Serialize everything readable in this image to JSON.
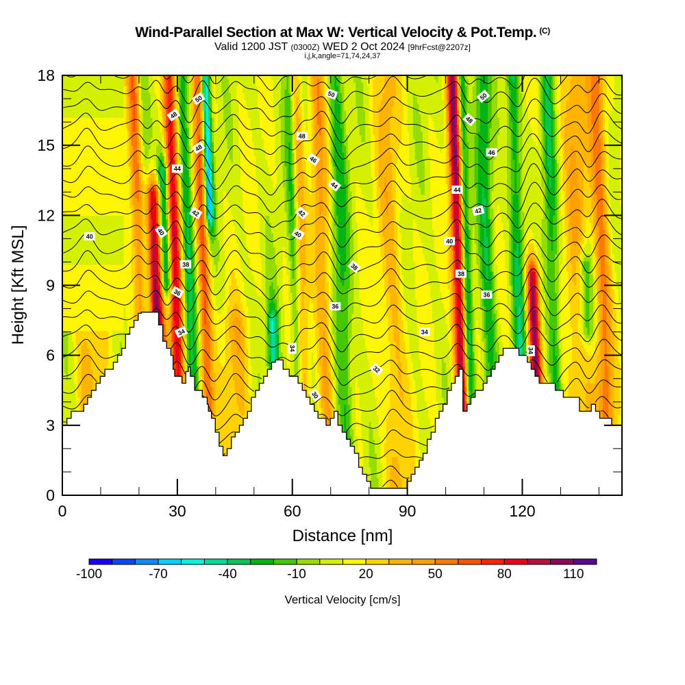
{
  "header": {
    "title": "Wind-Parallel Section at Max W: Vertical Velocity & Pot.Temp.",
    "copyright": "(C)",
    "valid_prefix": "Valid 1200 JST",
    "valid_utc": "(0300Z)",
    "valid_date": "WED 2 Oct 2024",
    "forecast": "[9hrFcst@2207z]",
    "indices": "i,j,k,angle=71,74,24,37"
  },
  "chart_data": {
    "type": "heatmap",
    "title": "Wind-Parallel Section at Max W: Vertical Velocity & Pot.Temp.",
    "xlabel": "Distance [nm]",
    "ylabel": "Height [Kft MSL]",
    "xlim": [
      0,
      146
    ],
    "ylim": [
      0,
      18
    ],
    "xticks": [
      0,
      30,
      60,
      90,
      120
    ],
    "xticks_minor_step": 10,
    "yticks": [
      0,
      3,
      6,
      9,
      12,
      15,
      18
    ],
    "yticks_minor_step": 1,
    "fill_variable": "Vertical Velocity [cm/s]",
    "contour_variable": "Potential Temperature",
    "contour_interval": 1,
    "contour_label_values": [
      30,
      32,
      34,
      36,
      38,
      40,
      42,
      44,
      46,
      48,
      50
    ],
    "colorbar": {
      "label": "Vertical Velocity [cm/s]",
      "boundaries": [
        -100,
        120
      ],
      "step": 10,
      "tick_labels": [
        "-100",
        "-70",
        "-40",
        "-10",
        "20",
        "50",
        "80",
        "110"
      ],
      "colors": [
        "#1400ff",
        "#0a46ff",
        "#0a8cff",
        "#00d2ff",
        "#00f5dc",
        "#00dc96",
        "#00c850",
        "#00b414",
        "#46c800",
        "#96dc00",
        "#d2f000",
        "#fff500",
        "#ffd200",
        "#ffb400",
        "#ffa000",
        "#ff7800",
        "#ff5000",
        "#ff2300",
        "#eb0014",
        "#be0a3c",
        "#870a5a",
        "#5a0a8c"
      ]
    },
    "updraft_bands": [
      {
        "x": 20.5,
        "strength": 55,
        "width": 1.4
      },
      {
        "x": 24.5,
        "strength": 95,
        "width": 1.5,
        "ymax": 13
      },
      {
        "x": 29.5,
        "strength": 80,
        "width": 1.3
      },
      {
        "x": 37.0,
        "strength": 55,
        "width": 1.2
      },
      {
        "x": 62.0,
        "strength": 35,
        "width": 1.3
      },
      {
        "x": 68.0,
        "strength": 35,
        "width": 1.4
      },
      {
        "x": 86.0,
        "strength": 25,
        "width": 2.2
      },
      {
        "x": 103.5,
        "strength": 95,
        "width": 1.2,
        "ymax": 18
      },
      {
        "x": 122.8,
        "strength": 95,
        "width": 1.1,
        "ymax": 9.5
      },
      {
        "x": 135.0,
        "strength": 30,
        "width": 2.5
      },
      {
        "x": 141.0,
        "strength": 45,
        "width": 1.5
      },
      {
        "x": 6.5,
        "strength": 22,
        "width": 2.5,
        "ymax": 7
      },
      {
        "x": 45.0,
        "strength": 25,
        "width": 2.5,
        "ymax": 7.5
      }
    ],
    "downdraft_bands": [
      {
        "x": 22.0,
        "strength": -35,
        "width": 1.2
      },
      {
        "x": 27.2,
        "strength": -70,
        "width": 1.1,
        "ymin": 9,
        "ymax": 14
      },
      {
        "x": 33.0,
        "strength": -40,
        "width": 1.3
      },
      {
        "x": 39.0,
        "strength": -80,
        "width": 0.8,
        "ymin": 12
      },
      {
        "x": 54.5,
        "strength": -55,
        "width": 1.0,
        "ymax": 7.5
      },
      {
        "x": 60.8,
        "strength": -40,
        "width": 1.0
      },
      {
        "x": 73.0,
        "strength": -30,
        "width": 1.5
      },
      {
        "x": 105.5,
        "strength": -50,
        "width": 0.9
      },
      {
        "x": 111.0,
        "strength": -35,
        "width": 1.4
      },
      {
        "x": 119.0,
        "strength": -40,
        "width": 1.2
      },
      {
        "x": 128.0,
        "strength": -35,
        "width": 1.2
      },
      {
        "x": 136.5,
        "strength": -45,
        "width": 1.4,
        "ymin": 7,
        "ymax": 10
      }
    ],
    "terrain_profile": {
      "x": [
        0,
        0.5,
        1.2,
        2.3,
        3.4,
        5.6,
        6.6,
        7.6,
        8.8,
        9.9,
        11.1,
        12.2,
        13.3,
        14.4,
        15.5,
        16.5,
        17.6,
        18.7,
        19.8,
        20.6,
        21.7,
        22.1,
        25.1,
        26.2,
        27.2,
        28.3,
        28.9,
        29.3,
        30.3,
        31.2,
        32.2,
        32.9,
        33.4,
        34.5,
        35.5,
        36.5,
        37.2,
        37.8,
        38.1,
        38.9,
        39.9,
        40.9,
        41.9,
        43.0,
        44.1,
        45.1,
        46.2,
        47.2,
        48.3,
        49.3,
        50.4,
        51.4,
        52.5,
        53.5,
        54.6,
        55.6,
        56.6,
        57.6,
        58.7,
        59.2,
        60.1,
        60.8,
        61.5,
        62.6,
        63.6,
        64.6,
        65.7,
        66.7,
        67.8,
        68.8,
        69.9,
        70.9,
        71.9,
        73.0,
        74.1,
        75.1,
        76.2,
        77.3,
        78.3,
        79.4,
        80.4,
        81.5,
        82.5,
        83.5,
        84.6,
        85.7,
        86.7,
        87.8,
        88.9,
        89.9,
        91.0,
        92.0,
        93.1,
        94.1,
        95.2,
        96.2,
        97.3,
        98.3,
        99.3,
        100.4,
        101.5,
        102.5,
        103.5,
        104.5,
        105.6,
        106.6,
        107.7,
        108.7,
        109.8,
        110.8,
        111.9,
        112.9,
        113.9,
        115.0,
        116.0,
        117.0,
        118.1,
        119.1,
        120.2,
        121.3,
        122.3,
        123.3,
        124.4,
        125.5,
        126.5,
        127.6,
        128.6,
        129.7,
        130.7,
        131.7,
        132.8,
        133.8,
        134.9,
        135.9,
        137.0,
        138.0,
        139.1,
        140.2,
        141.2,
        142.3,
        143.3,
        144.4,
        146.0
      ],
      "h": [
        3.0,
        3.0,
        3.3,
        3.6,
        3.6,
        3.9,
        4.2,
        4.5,
        4.8,
        5.1,
        5.4,
        5.4,
        5.7,
        6.0,
        6.3,
        6.9,
        7.2,
        7.5,
        7.8,
        7.85,
        7.85,
        7.85,
        7.3,
        6.6,
        6.3,
        6.0,
        5.4,
        5.1,
        5.1,
        4.8,
        5.3,
        5.5,
        5.1,
        4.5,
        4.5,
        4.2,
        4.2,
        3.9,
        3.6,
        3.3,
        2.7,
        2.1,
        1.7,
        2.0,
        2.5,
        2.7,
        3.0,
        3.3,
        3.6,
        4.2,
        4.5,
        4.8,
        5.1,
        5.4,
        5.7,
        5.8,
        5.8,
        5.4,
        5.4,
        5.1,
        5.1,
        5.1,
        4.8,
        4.5,
        4.2,
        3.9,
        3.6,
        3.3,
        3.3,
        3.0,
        3.3,
        3.6,
        3.0,
        2.7,
        2.4,
        2.1,
        1.8,
        1.2,
        0.9,
        0.6,
        0.3,
        0.3,
        0.3,
        0.3,
        0.3,
        0.3,
        0.3,
        0.3,
        0.3,
        0.6,
        0.9,
        1.2,
        1.5,
        1.8,
        2.4,
        2.7,
        3.3,
        3.6,
        3.9,
        4.5,
        4.8,
        5.1,
        5.4,
        3.6,
        3.9,
        4.2,
        4.5,
        4.5,
        4.8,
        5.1,
        5.4,
        5.7,
        6.0,
        6.3,
        6.3,
        6.3,
        6.3,
        6.0,
        6.0,
        5.7,
        5.4,
        5.1,
        4.8,
        4.8,
        4.8,
        4.8,
        4.5,
        4.5,
        4.2,
        4.2,
        4.2,
        4.2,
        3.6,
        3.6,
        3.6,
        3.9,
        3.6,
        3.3,
        3.3,
        3.3,
        3.0,
        3.0,
        3.0,
        3.0,
        3.0
      ],
      "fill_color": "#ffffff"
    },
    "contour_labels": [
      {
        "text": "50",
        "x": 35.5,
        "y": 17.0,
        "angle": -35
      },
      {
        "text": "48",
        "x": 29.0,
        "y": 16.3,
        "angle": -35
      },
      {
        "text": "48",
        "x": 35.5,
        "y": 14.9,
        "angle": -35
      },
      {
        "text": "44",
        "x": 30.0,
        "y": 14.0,
        "angle": 0
      },
      {
        "text": "42",
        "x": 34.8,
        "y": 12.1,
        "angle": 30
      },
      {
        "text": "40",
        "x": 25.8,
        "y": 11.3,
        "angle": 55
      },
      {
        "text": "40",
        "x": 7.1,
        "y": 11.1,
        "angle": 0
      },
      {
        "text": "38",
        "x": 32.2,
        "y": 9.9,
        "angle": 0
      },
      {
        "text": "36",
        "x": 30.0,
        "y": 8.7,
        "angle": 30
      },
      {
        "text": "34",
        "x": 31.0,
        "y": 7.0,
        "angle": -25
      },
      {
        "text": "50",
        "x": 70.2,
        "y": 17.2,
        "angle": 20
      },
      {
        "text": "48",
        "x": 62.5,
        "y": 15.4,
        "angle": 0
      },
      {
        "text": "46",
        "x": 65.5,
        "y": 14.4,
        "angle": 35
      },
      {
        "text": "44",
        "x": 71.0,
        "y": 13.3,
        "angle": 40
      },
      {
        "text": "42",
        "x": 62.5,
        "y": 12.1,
        "angle": 40
      },
      {
        "text": "40",
        "x": 61.5,
        "y": 11.2,
        "angle": 30
      },
      {
        "text": "38",
        "x": 76.2,
        "y": 9.8,
        "angle": 40
      },
      {
        "text": "36",
        "x": 71.2,
        "y": 8.1,
        "angle": 0
      },
      {
        "text": "34",
        "x": 60.0,
        "y": 6.3,
        "angle": 90
      },
      {
        "text": "30",
        "x": 66.0,
        "y": 4.3,
        "angle": 55
      },
      {
        "text": "32",
        "x": 82.0,
        "y": 5.4,
        "angle": 40
      },
      {
        "text": "34",
        "x": 94.5,
        "y": 7.0,
        "angle": 0
      },
      {
        "text": "40",
        "x": 101.0,
        "y": 10.9,
        "angle": 0
      },
      {
        "text": "44",
        "x": 103.0,
        "y": 13.1,
        "angle": 0
      },
      {
        "text": "48",
        "x": 106.2,
        "y": 16.1,
        "angle": 40
      },
      {
        "text": "50",
        "x": 109.8,
        "y": 17.1,
        "angle": -40
      },
      {
        "text": "46",
        "x": 112.0,
        "y": 14.7,
        "angle": 0
      },
      {
        "text": "42",
        "x": 108.5,
        "y": 12.2,
        "angle": -15
      },
      {
        "text": "38",
        "x": 104.0,
        "y": 9.5,
        "angle": 0
      },
      {
        "text": "36",
        "x": 110.7,
        "y": 8.6,
        "angle": 0
      },
      {
        "text": "34",
        "x": 122.2,
        "y": 6.2,
        "angle": 90
      }
    ]
  }
}
